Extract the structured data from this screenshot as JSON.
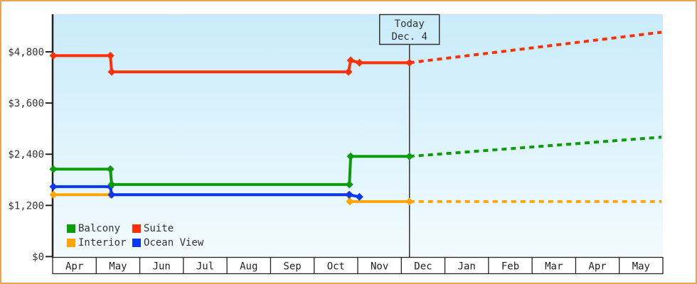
{
  "page": {
    "background": "#ffffff",
    "border_color": "#e9a556",
    "axis_color": "#222222",
    "text_color": "#333333"
  },
  "legend": {
    "items": [
      {
        "label": "Balcony",
        "color": "#0a9c0a"
      },
      {
        "label": "Suite",
        "color": "#f93008"
      },
      {
        "label": "Interior",
        "color": "#ffa607"
      },
      {
        "label": "Ocean View",
        "color": "#0838f0"
      }
    ]
  },
  "annotation": {
    "line1": "Today",
    "line2": "Dec. 4"
  },
  "chart_data": {
    "type": "line",
    "subtype": "step-price-history",
    "title": "",
    "xlabel": "",
    "ylabel": "",
    "grid": false,
    "legend_position": "bottom-left-inside",
    "background_gradient": [
      "#c9ebf9",
      "#f3fbff"
    ],
    "x_categories": [
      "Apr",
      "May",
      "Jun",
      "Jul",
      "Aug",
      "Sep",
      "Oct",
      "Nov",
      "Dec",
      "Jan",
      "Feb",
      "Mar",
      "Apr",
      "May"
    ],
    "x_range_months": 14,
    "ylim": [
      0,
      5682
    ],
    "y_ticks": [
      {
        "value": 0,
        "label": "$0"
      },
      {
        "value": 1200,
        "label": "$1,200"
      },
      {
        "value": 2400,
        "label": "$2,400"
      },
      {
        "value": 3600,
        "label": "$3,600"
      },
      {
        "value": 4800,
        "label": "$4,800"
      }
    ],
    "today": {
      "label_line1": "Today",
      "label_line2": "Dec. 4",
      "x_months": 8.18
    },
    "series": [
      {
        "name": "Interior",
        "color": "#ffa607",
        "style": "step",
        "points": [
          {
            "m": 0.0,
            "v": 1450
          },
          {
            "m": 1.31,
            "v": 1450
          },
          {
            "m": 6.78,
            "v": 1450
          },
          {
            "m": 6.81,
            "v": 1290
          },
          {
            "m": 8.18,
            "v": 1290
          }
        ],
        "projection": {
          "m": 13.97,
          "v": 1290
        }
      },
      {
        "name": "Ocean View",
        "color": "#0838f0",
        "style": "step",
        "points": [
          {
            "m": 0.0,
            "v": 1640
          },
          {
            "m": 1.31,
            "v": 1640
          },
          {
            "m": 1.34,
            "v": 1450
          },
          {
            "m": 6.8,
            "v": 1450
          },
          {
            "m": 7.03,
            "v": 1400
          }
        ],
        "projection": null
      },
      {
        "name": "Balcony",
        "color": "#0a9c0a",
        "style": "step",
        "points": [
          {
            "m": 0.0,
            "v": 2050
          },
          {
            "m": 1.31,
            "v": 2050
          },
          {
            "m": 1.34,
            "v": 1690
          },
          {
            "m": 6.8,
            "v": 1690
          },
          {
            "m": 6.83,
            "v": 2350
          },
          {
            "m": 8.18,
            "v": 2350
          }
        ],
        "projection": {
          "m": 13.97,
          "v": 2800
        }
      },
      {
        "name": "Suite",
        "color": "#f93008",
        "style": "step",
        "points": [
          {
            "m": 0.0,
            "v": 4710
          },
          {
            "m": 1.31,
            "v": 4710
          },
          {
            "m": 1.34,
            "v": 4330
          },
          {
            "m": 6.78,
            "v": 4330
          },
          {
            "m": 6.83,
            "v": 4600
          },
          {
            "m": 7.03,
            "v": 4545
          },
          {
            "m": 8.18,
            "v": 4545
          }
        ],
        "projection": {
          "m": 13.97,
          "v": 5260
        }
      }
    ]
  }
}
